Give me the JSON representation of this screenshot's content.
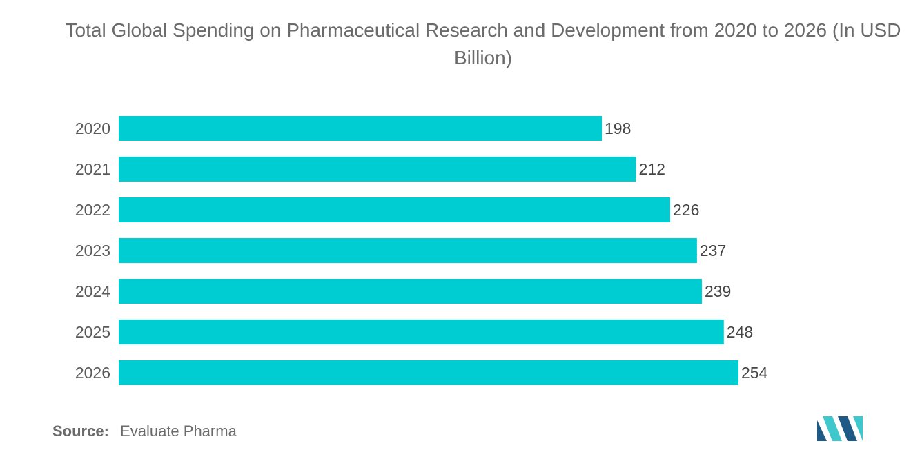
{
  "chart_data": {
    "type": "bar",
    "orientation": "horizontal",
    "title": "Total Global Spending on Pharmaceutical Research and Development from 2020 to 2026 (In USD Billion)",
    "categories": [
      "2020",
      "2021",
      "2022",
      "2023",
      "2024",
      "2025",
      "2026"
    ],
    "values": [
      198,
      212,
      226,
      237,
      239,
      248,
      254
    ],
    "data_labels": [
      "198",
      "212",
      "226",
      "237",
      "239",
      "248",
      "254"
    ],
    "xlim": [
      0,
      254
    ],
    "grid": false,
    "legend": "none",
    "bar_color": "#00cdd1"
  },
  "source": {
    "label": "Source:",
    "text": "Evaluate Pharma"
  },
  "colors": {
    "bar": "#00cdd1",
    "logo_dark": "#1f5a86",
    "logo_light": "#3fc8cc"
  },
  "logo": {
    "icon": "mordor-intelligence-logo-icon"
  }
}
